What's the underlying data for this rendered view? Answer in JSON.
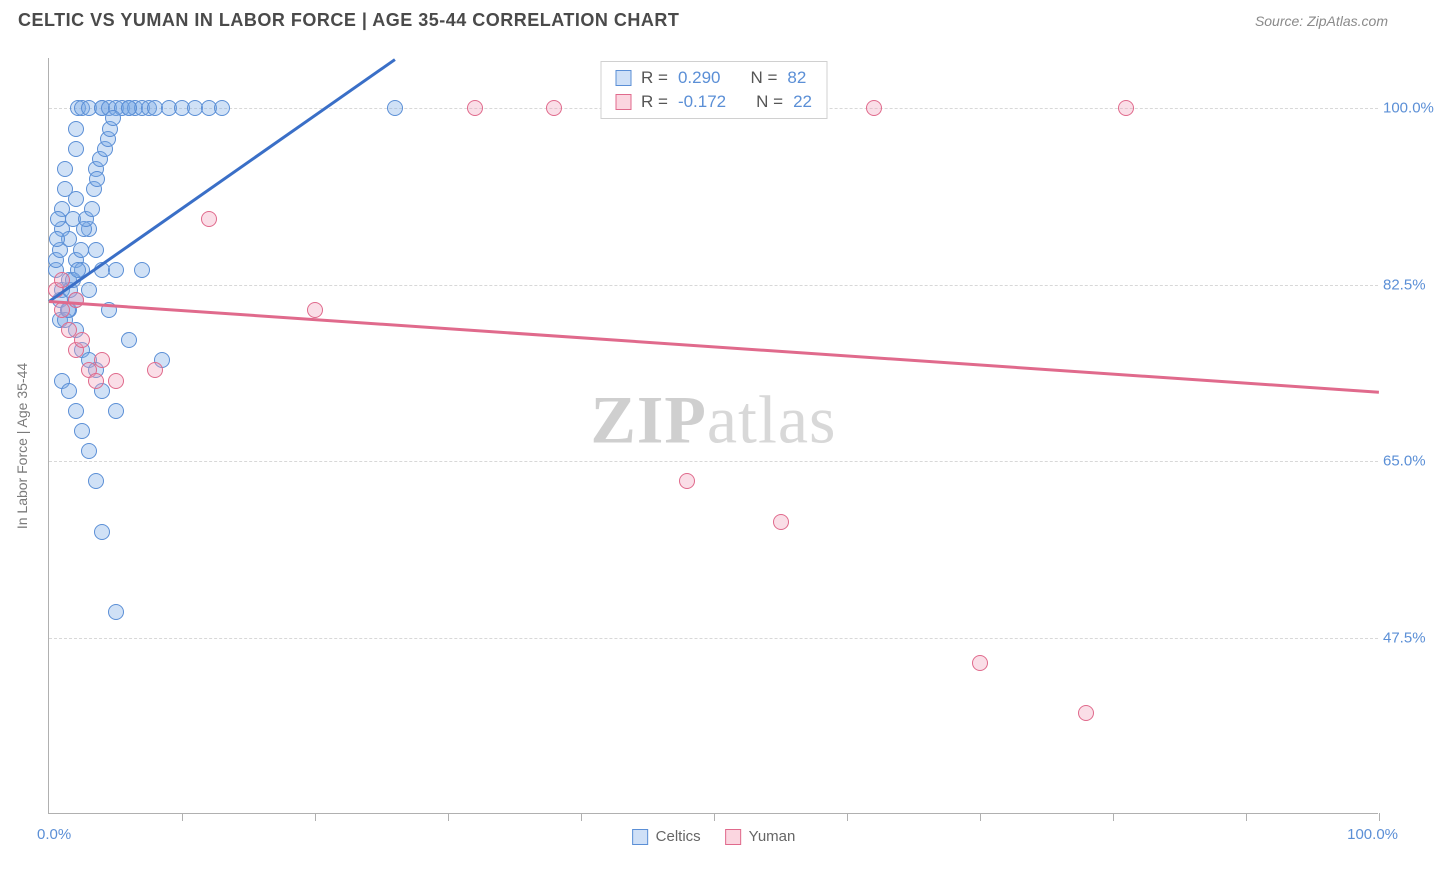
{
  "title": "CELTIC VS YUMAN IN LABOR FORCE | AGE 35-44 CORRELATION CHART",
  "source": "Source: ZipAtlas.com",
  "watermark_a": "ZIP",
  "watermark_b": "atlas",
  "ylabel": "In Labor Force | Age 35-44",
  "chart": {
    "type": "scatter",
    "xlim": [
      0,
      100
    ],
    "ylim": [
      30,
      105
    ],
    "yticks": [
      47.5,
      65.0,
      82.5,
      100.0
    ],
    "ytick_labels": [
      "47.5%",
      "65.0%",
      "82.5%",
      "100.0%"
    ],
    "xtick_positions": [
      10,
      20,
      30,
      40,
      50,
      60,
      70,
      80,
      90,
      100
    ],
    "xaxis_min_label": "0.0%",
    "xaxis_max_label": "100.0%",
    "background_color": "#ffffff",
    "grid_color": "#d8d8d8",
    "marker_size": 16,
    "series": [
      {
        "name": "Celtics",
        "color_fill": "#cfe0f7",
        "color_stroke": "#5b8fd6",
        "R": "0.290",
        "N": "82",
        "trend": {
          "x1": 0,
          "y1": 81,
          "x2": 26,
          "y2": 105,
          "color": "#3a6fc7"
        },
        "points": [
          [
            0.5,
            84
          ],
          [
            0.5,
            85
          ],
          [
            0.8,
            86
          ],
          [
            1,
            82
          ],
          [
            1,
            88
          ],
          [
            1,
            90
          ],
          [
            1.2,
            92
          ],
          [
            1.2,
            94
          ],
          [
            1.5,
            80
          ],
          [
            1.5,
            83
          ],
          [
            1.5,
            87
          ],
          [
            1.8,
            89
          ],
          [
            2,
            78
          ],
          [
            2,
            81
          ],
          [
            2,
            85
          ],
          [
            2,
            91
          ],
          [
            2,
            96
          ],
          [
            2,
            98
          ],
          [
            2.2,
            100
          ],
          [
            2.5,
            76
          ],
          [
            2.5,
            84
          ],
          [
            2.5,
            100
          ],
          [
            3,
            75
          ],
          [
            3,
            82
          ],
          [
            3,
            88
          ],
          [
            3,
            100
          ],
          [
            3.5,
            74
          ],
          [
            3.5,
            86
          ],
          [
            3.5,
            94
          ],
          [
            4,
            72
          ],
          [
            4,
            84
          ],
          [
            4,
            100
          ],
          [
            4,
            100
          ],
          [
            4.5,
            80
          ],
          [
            4.5,
            100
          ],
          [
            5,
            70
          ],
          [
            5,
            84
          ],
          [
            5,
            100
          ],
          [
            5.5,
            100
          ],
          [
            6,
            77
          ],
          [
            6,
            100
          ],
          [
            6.5,
            100
          ],
          [
            7,
            84
          ],
          [
            7,
            100
          ],
          [
            7.5,
            100
          ],
          [
            8,
            100
          ],
          [
            8.5,
            75
          ],
          [
            9,
            100
          ],
          [
            10,
            100
          ],
          [
            11,
            100
          ],
          [
            12,
            100
          ],
          [
            13,
            100
          ],
          [
            1,
            73
          ],
          [
            1.5,
            72
          ],
          [
            2,
            70
          ],
          [
            2.5,
            68
          ],
          [
            3,
            66
          ],
          [
            3.5,
            63
          ],
          [
            4,
            58
          ],
          [
            5,
            50
          ],
          [
            6,
            100
          ],
          [
            0.8,
            79
          ],
          [
            0.8,
            81
          ],
          [
            1.2,
            79
          ],
          [
            1.4,
            80
          ],
          [
            1.6,
            82
          ],
          [
            1.8,
            83
          ],
          [
            2.2,
            84
          ],
          [
            2.4,
            86
          ],
          [
            2.6,
            88
          ],
          [
            2.8,
            89
          ],
          [
            3.2,
            90
          ],
          [
            3.4,
            92
          ],
          [
            3.6,
            93
          ],
          [
            3.8,
            95
          ],
          [
            4.2,
            96
          ],
          [
            4.4,
            97
          ],
          [
            4.6,
            98
          ],
          [
            4.8,
            99
          ],
          [
            0.6,
            87
          ],
          [
            0.7,
            89
          ],
          [
            26,
            100
          ]
        ]
      },
      {
        "name": "Yuman",
        "color_fill": "#fbd6e0",
        "color_stroke": "#e06a8c",
        "R": "-0.172",
        "N": "22",
        "trend": {
          "x1": 0,
          "y1": 81,
          "x2": 100,
          "y2": 72,
          "color": "#e06a8c"
        },
        "points": [
          [
            0.5,
            82
          ],
          [
            1,
            80
          ],
          [
            1.5,
            78
          ],
          [
            2,
            76
          ],
          [
            2.5,
            77
          ],
          [
            3,
            74
          ],
          [
            3.5,
            73
          ],
          [
            4,
            75
          ],
          [
            8,
            74
          ],
          [
            12,
            89
          ],
          [
            20,
            80
          ],
          [
            32,
            100
          ],
          [
            38,
            100
          ],
          [
            48,
            63
          ],
          [
            55,
            59
          ],
          [
            62,
            100
          ],
          [
            70,
            45
          ],
          [
            78,
            40
          ],
          [
            81,
            100
          ],
          [
            1,
            83
          ],
          [
            2,
            81
          ],
          [
            5,
            73
          ]
        ]
      }
    ]
  },
  "legend_top": {
    "rows": [
      {
        "swatch": "blue",
        "r_label": "R =",
        "r_val": "0.290",
        "n_label": "N =",
        "n_val": "82",
        "val_class": "val-blue"
      },
      {
        "swatch": "pink",
        "r_label": "R =",
        "r_val": "-0.172",
        "n_label": "N =",
        "n_val": "22",
        "val_class": "val-blue"
      }
    ]
  },
  "legend_bottom": [
    {
      "swatch": "blue",
      "label": "Celtics"
    },
    {
      "swatch": "pink",
      "label": "Yuman"
    }
  ]
}
